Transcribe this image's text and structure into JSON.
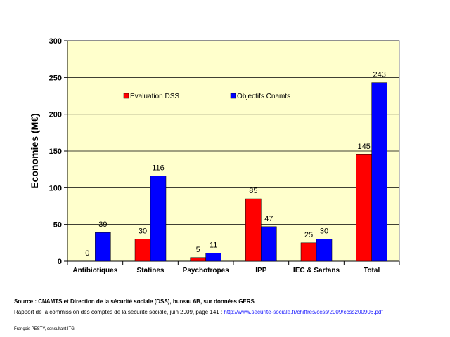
{
  "chart_data": {
    "type": "bar",
    "categories": [
      "Antibiotiques",
      "Statines",
      "Psychotropes",
      "IPP",
      "IEC & Sartans",
      "Total"
    ],
    "series": [
      {
        "name": "Evaluation DSS",
        "values": [
          0,
          30,
          5,
          85,
          25,
          145
        ],
        "color": "#ff0000"
      },
      {
        "name": "Objectifs Cnamts",
        "values": [
          39,
          116,
          11,
          47,
          30,
          243
        ],
        "color": "#0000ff"
      }
    ],
    "ylabel": "Economies (M€)",
    "ylim": [
      0,
      300
    ],
    "yticks": [
      0,
      50,
      100,
      150,
      200,
      250,
      300
    ],
    "grid": true,
    "legend": "top-center",
    "plot_background": "#ffffcc"
  },
  "footer": {
    "source": "Source : CNAMTS et Direction de la sécurité sociale (DSS), bureau 6B, sur données GERS",
    "report_prefix": "Rapport de la commission des comptes de la sécurité sociale, juin 2009, page 141 : ",
    "report_link": "http://www.securite-sociale.fr/chiffres/ccss/2009/ccss200906.pdf",
    "author": "François PESTY, consultant ITG"
  }
}
